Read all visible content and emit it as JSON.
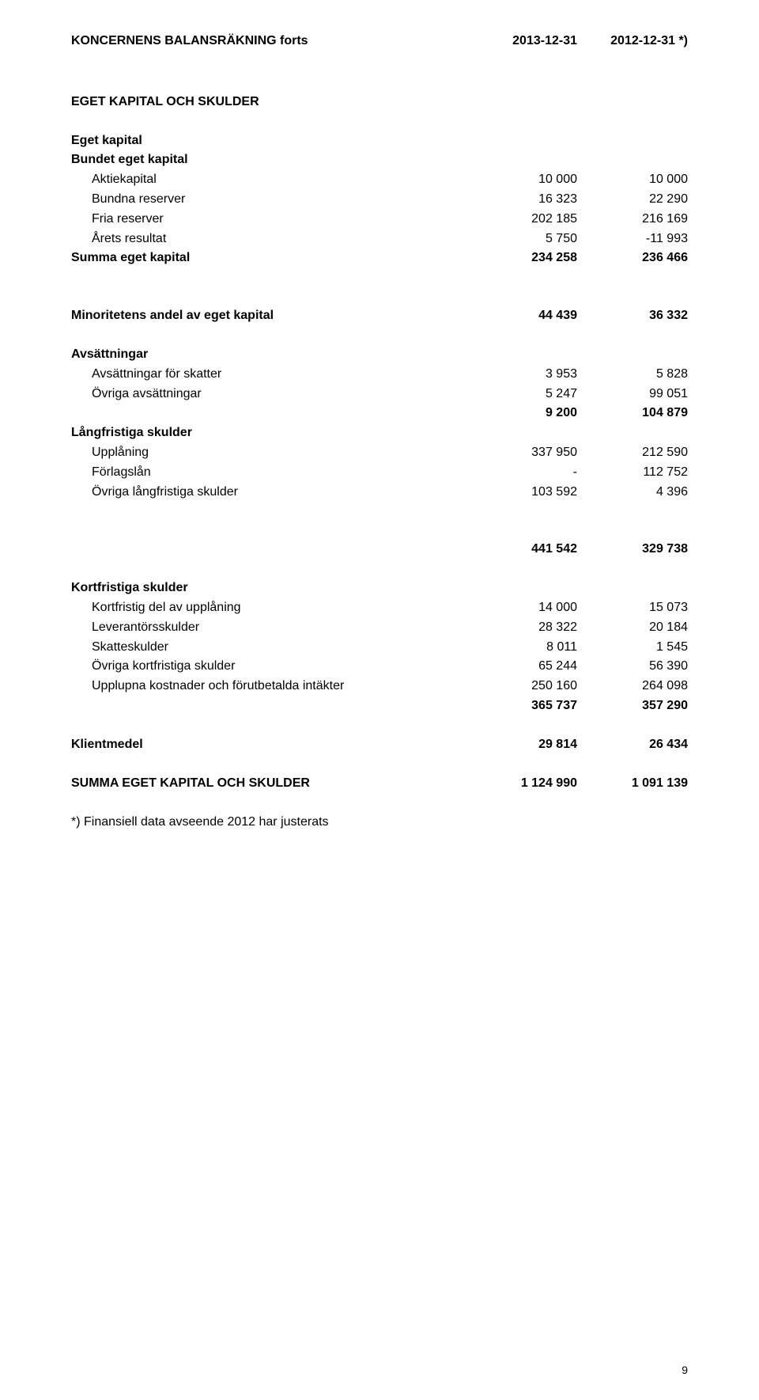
{
  "header": {
    "title": "KONCERNENS BALANSRÄKNING forts",
    "col1": "2013-12-31",
    "col2": "2012-12-31 *)"
  },
  "section1": {
    "title": "EGET KAPITAL OCH SKULDER"
  },
  "egetKapital": {
    "heading": "Eget kapital",
    "sub": "Bundet eget kapital",
    "rows": [
      {
        "label": "Aktiekapital",
        "c1": "10 000",
        "c2": "10 000"
      },
      {
        "label": "Bundna reserver",
        "c1": "16 323",
        "c2": "22 290"
      },
      {
        "label": "Fria reserver",
        "c1": "202 185",
        "c2": "216 169"
      },
      {
        "label": "Årets resultat",
        "c1": "5 750",
        "c2": "-11 993"
      }
    ],
    "sum": {
      "label": "Summa eget kapital",
      "c1": "234 258",
      "c2": "236 466"
    }
  },
  "minoritet": {
    "label": "Minoritetens andel av eget kapital",
    "c1": "44 439",
    "c2": "36 332"
  },
  "avsattningar": {
    "heading": "Avsättningar",
    "rows": [
      {
        "label": "Avsättningar för skatter",
        "c1": "3 953",
        "c2": "5 828"
      },
      {
        "label": "Övriga avsättningar",
        "c1": "5 247",
        "c2": "99 051"
      }
    ],
    "sub": {
      "c1": "9 200",
      "c2": "104 879"
    }
  },
  "langfristiga": {
    "heading": "Långfristiga skulder",
    "rows": [
      {
        "label": "Upplåning",
        "c1": "337 950",
        "c2": "212 590"
      },
      {
        "label": "Förlagslån",
        "c1": "-",
        "c2": "112 752"
      },
      {
        "label": "Övriga långfristiga skulder",
        "c1": "103 592",
        "c2": "4 396"
      }
    ],
    "sum": {
      "c1": "441 542",
      "c2": "329 738"
    }
  },
  "kortfristiga": {
    "heading": "Kortfristiga skulder",
    "rows": [
      {
        "label": "Kortfristig del av upplåning",
        "c1": "14 000",
        "c2": "15 073"
      },
      {
        "label": "Leverantörsskulder",
        "c1": "28 322",
        "c2": "20 184"
      },
      {
        "label": "Skatteskulder",
        "c1": "8 011",
        "c2": "1 545"
      },
      {
        "label": "Övriga kortfristiga skulder",
        "c1": "65 244",
        "c2": "56 390"
      },
      {
        "label": "Upplupna kostnader och förutbetalda intäkter",
        "c1": "250 160",
        "c2": "264 098"
      }
    ],
    "sub": {
      "c1": "365 737",
      "c2": "357 290"
    }
  },
  "klientmedel": {
    "label": "Klientmedel",
    "c1": "29 814",
    "c2": "26 434"
  },
  "summa": {
    "label": "SUMMA EGET KAPITAL OCH SKULDER",
    "c1": "1 124 990",
    "c2": "1 091 139"
  },
  "footnote": "*) Finansiell data avseende 2012 har justerats",
  "pageNum": "9"
}
